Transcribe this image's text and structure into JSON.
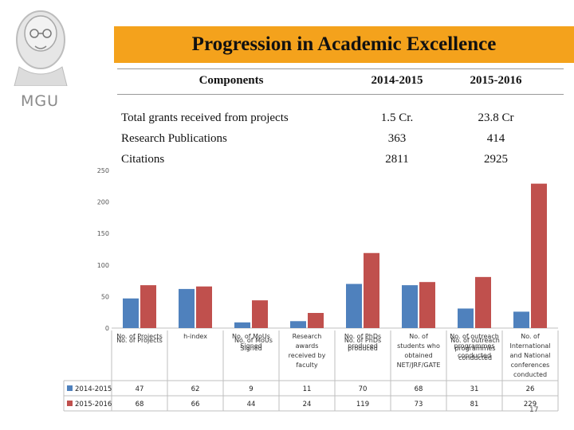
{
  "header": {
    "title": "Progression in Academic Excellence",
    "logo_text": "MGU"
  },
  "summary": {
    "headers": [
      "Components",
      "2014-2015",
      "2015-2016"
    ],
    "rows": [
      {
        "label": "Total grants received from projects",
        "v1": "1.5 Cr.",
        "v2": "23.8 Cr"
      },
      {
        "label": "Research Publications",
        "v1": "363",
        "v2": "414"
      },
      {
        "label": "Citations",
        "v1": "2811",
        "v2": "2925"
      }
    ]
  },
  "chart_data": {
    "type": "bar",
    "ylim": [
      0,
      250
    ],
    "yticks": [
      "0",
      "50",
      "100",
      "150",
      "200",
      "250"
    ],
    "categories": [
      [
        "No. of Projects"
      ],
      [
        "h-index"
      ],
      [
        "No. of MoUs",
        "Signed"
      ],
      [
        "Research",
        "awards",
        "received by",
        "faculty"
      ],
      [
        "No. of PhDs",
        "produced"
      ],
      [
        "No. of",
        "students who",
        "obtained",
        "NET/JRF/GATE"
      ],
      [
        "No. of outreach",
        "programmes",
        "conducted"
      ],
      [
        "No. of",
        "International",
        "and National",
        "conferences",
        "conducted"
      ]
    ],
    "ghost_labels": [
      "No. of Projects",
      "No. of MoUs",
      "Signed",
      "No. of PhDs",
      "produced",
      "No. of outreach",
      "programmes",
      "conducted"
    ],
    "series": [
      {
        "name": "2014-2015",
        "color": "#4f81bd",
        "values": [
          47,
          62,
          9,
          11,
          70,
          68,
          31,
          26
        ]
      },
      {
        "name": "2015-2016",
        "color": "#c0504d",
        "values": [
          68,
          66,
          44,
          24,
          119,
          73,
          81,
          229
        ]
      }
    ],
    "table_values": [
      [
        "47",
        "62",
        "9",
        "11",
        "70",
        "68",
        "31",
        "26"
      ],
      [
        "68",
        "66",
        "44",
        "24",
        "119",
        "73",
        "81",
        "229"
      ]
    ]
  },
  "footer": {
    "page_number": "17"
  }
}
